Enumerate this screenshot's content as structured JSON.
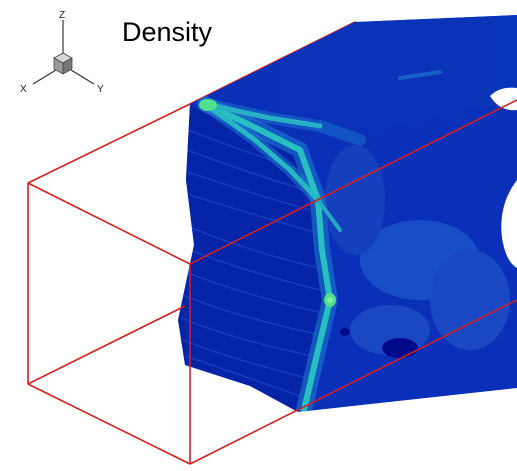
{
  "plot": {
    "title": "Density",
    "colors": {
      "background": "#ffffff",
      "bounding_box": "#d42020",
      "field_deep": "#000a8a",
      "field_main": "#0a2fb8",
      "field_mid": "#1f5fd0",
      "field_light": "#2f86d8",
      "streak_cyan": "#27c0c0",
      "streak_green": "#52e08c",
      "triad_gray": "#888888"
    }
  },
  "orientation_triad": {
    "icon": "axis-triad-icon",
    "labels": {
      "z": "Z",
      "x": "X",
      "y": "Y"
    }
  }
}
